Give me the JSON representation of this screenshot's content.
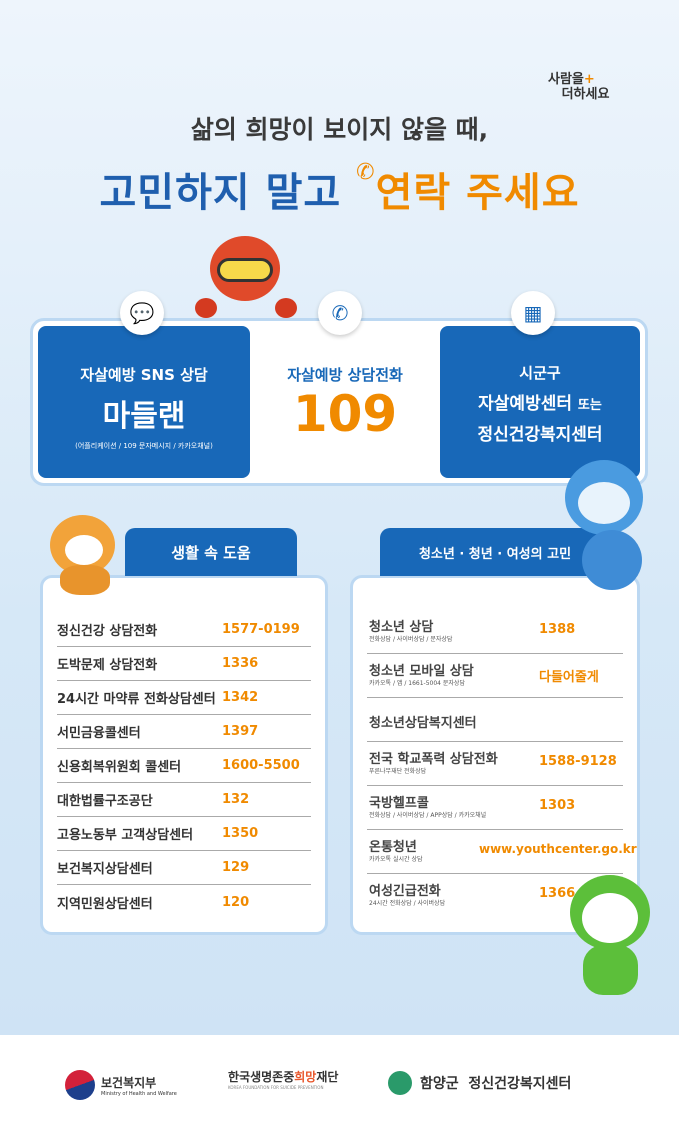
{
  "brand": {
    "pre": "사람을",
    "mid": "+",
    "post": "더하세요"
  },
  "headline": {
    "line1": "삶의 희망이 보이지 않을 때,",
    "line2_blue": "고민하지 말고",
    "line2_orange": "연락 주세요"
  },
  "top": {
    "sns": {
      "title": "자살예방 SNS 상담",
      "name": "마들랜",
      "sub": "(어플리케이션 / 109 문자메시지 / 카카오채널)",
      "icon": "chat-icon"
    },
    "phone": {
      "title": "자살예방 상담전화",
      "number": "109",
      "icon": "phone-icon"
    },
    "center": {
      "line1": "시군구",
      "line2": "자살예방센터",
      "line2b": "또는",
      "line3": "정신건강복지센터",
      "icon": "building-icon"
    }
  },
  "life": {
    "header": "생활 속 도움",
    "items": [
      {
        "name": "정신건강 상담전화",
        "value": "1577-0199"
      },
      {
        "name": "도박문제 상담전화",
        "value": "1336"
      },
      {
        "name": "24시간 마약류 전화상담센터",
        "value": "1342"
      },
      {
        "name": "서민금융콜센터",
        "value": "1397"
      },
      {
        "name": "신용회복위원회 콜센터",
        "value": "1600-5500"
      },
      {
        "name": "대한법률구조공단",
        "value": "132"
      },
      {
        "name": "고용노동부 고객상담센터",
        "value": "1350"
      },
      {
        "name": "보건복지상담센터",
        "value": "129"
      },
      {
        "name": "지역민원상담센터",
        "value": "120"
      }
    ]
  },
  "youth": {
    "header": "청소년 · 청년 · 여성의 고민",
    "items": [
      {
        "name": "청소년 상담",
        "sub": "전화상담 / 사이버상담 / 문자상담",
        "value": "1388"
      },
      {
        "name": "청소년 모바일 상담",
        "sub": "카카오톡 / 앱 / 1661-5004 문자상담",
        "value": "다들어줄게"
      },
      {
        "name": "청소년상담복지센터",
        "sub": "",
        "value": ""
      },
      {
        "name": "전국 학교폭력 상담전화",
        "sub": "푸른나무재단 전화상담",
        "value": "1588-9128"
      },
      {
        "name": "국방헬프콜",
        "sub": "전화상담 / 사이버상담 / APP상담 / 카카오채널",
        "value": "1303"
      },
      {
        "name": "온통청년",
        "sub": "카카오톡 실시간 상담",
        "value": "www.youthcenter.go.kr"
      },
      {
        "name": "여성긴급전화",
        "sub": "24시간 전화상담 / 사이버상담",
        "value": "1366"
      }
    ]
  },
  "footer": {
    "mohw": "보건복지부",
    "mohw_en": "Ministry of Health and Welfare",
    "kfsp_a": "한국생명존중",
    "kfsp_b": "희망",
    "kfsp_c": "재단",
    "kfsp_en": "KOREA FOUNDATION FOR SUICIDE PREVENTION",
    "local": "함양군  정신건강복지센터"
  },
  "colors": {
    "blue": "#1868b8",
    "orange": "#f08a00",
    "title_blue": "#1f5fae"
  }
}
